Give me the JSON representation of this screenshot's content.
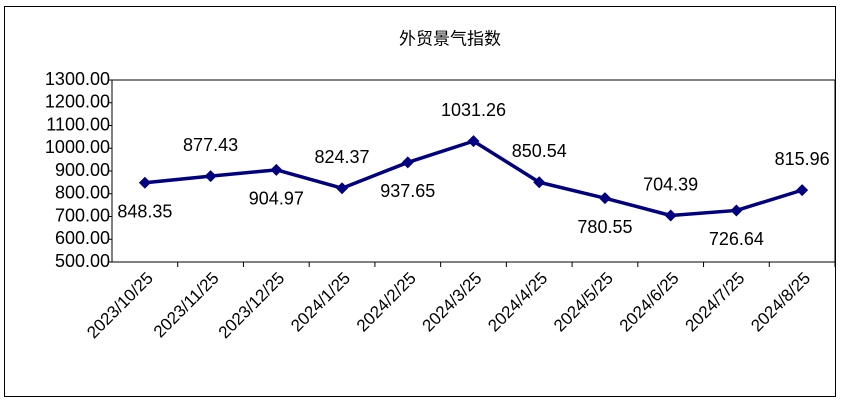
{
  "chart_data": {
    "type": "line",
    "title": "外贸景气指数",
    "categories": [
      "2023/10/25",
      "2023/11/25",
      "2023/12/25",
      "2024/1/25",
      "2024/2/25",
      "2024/3/25",
      "2024/4/25",
      "2024/5/25",
      "2024/6/25",
      "2024/7/25",
      "2024/8/25"
    ],
    "series": [
      {
        "name": "外贸景气指数",
        "color": "#000080",
        "values": [
          848.35,
          877.43,
          904.97,
          824.37,
          937.65,
          1031.26,
          850.54,
          780.55,
          704.39,
          726.64,
          815.96
        ]
      }
    ],
    "ylim": [
      500,
      1300
    ],
    "yticks": [
      {
        "value": 500,
        "label": "500.00"
      },
      {
        "value": 600,
        "label": "600.00"
      },
      {
        "value": 700,
        "label": "700.00"
      },
      {
        "value": 800,
        "label": "800.00"
      },
      {
        "value": 900,
        "label": "900.00"
      },
      {
        "value": 1000,
        "label": "1000.00"
      },
      {
        "value": 1100,
        "label": "1100.00"
      },
      {
        "value": 1200,
        "label": "1200.00"
      },
      {
        "value": 1300,
        "label": "1300.00"
      }
    ],
    "grid": false
  }
}
